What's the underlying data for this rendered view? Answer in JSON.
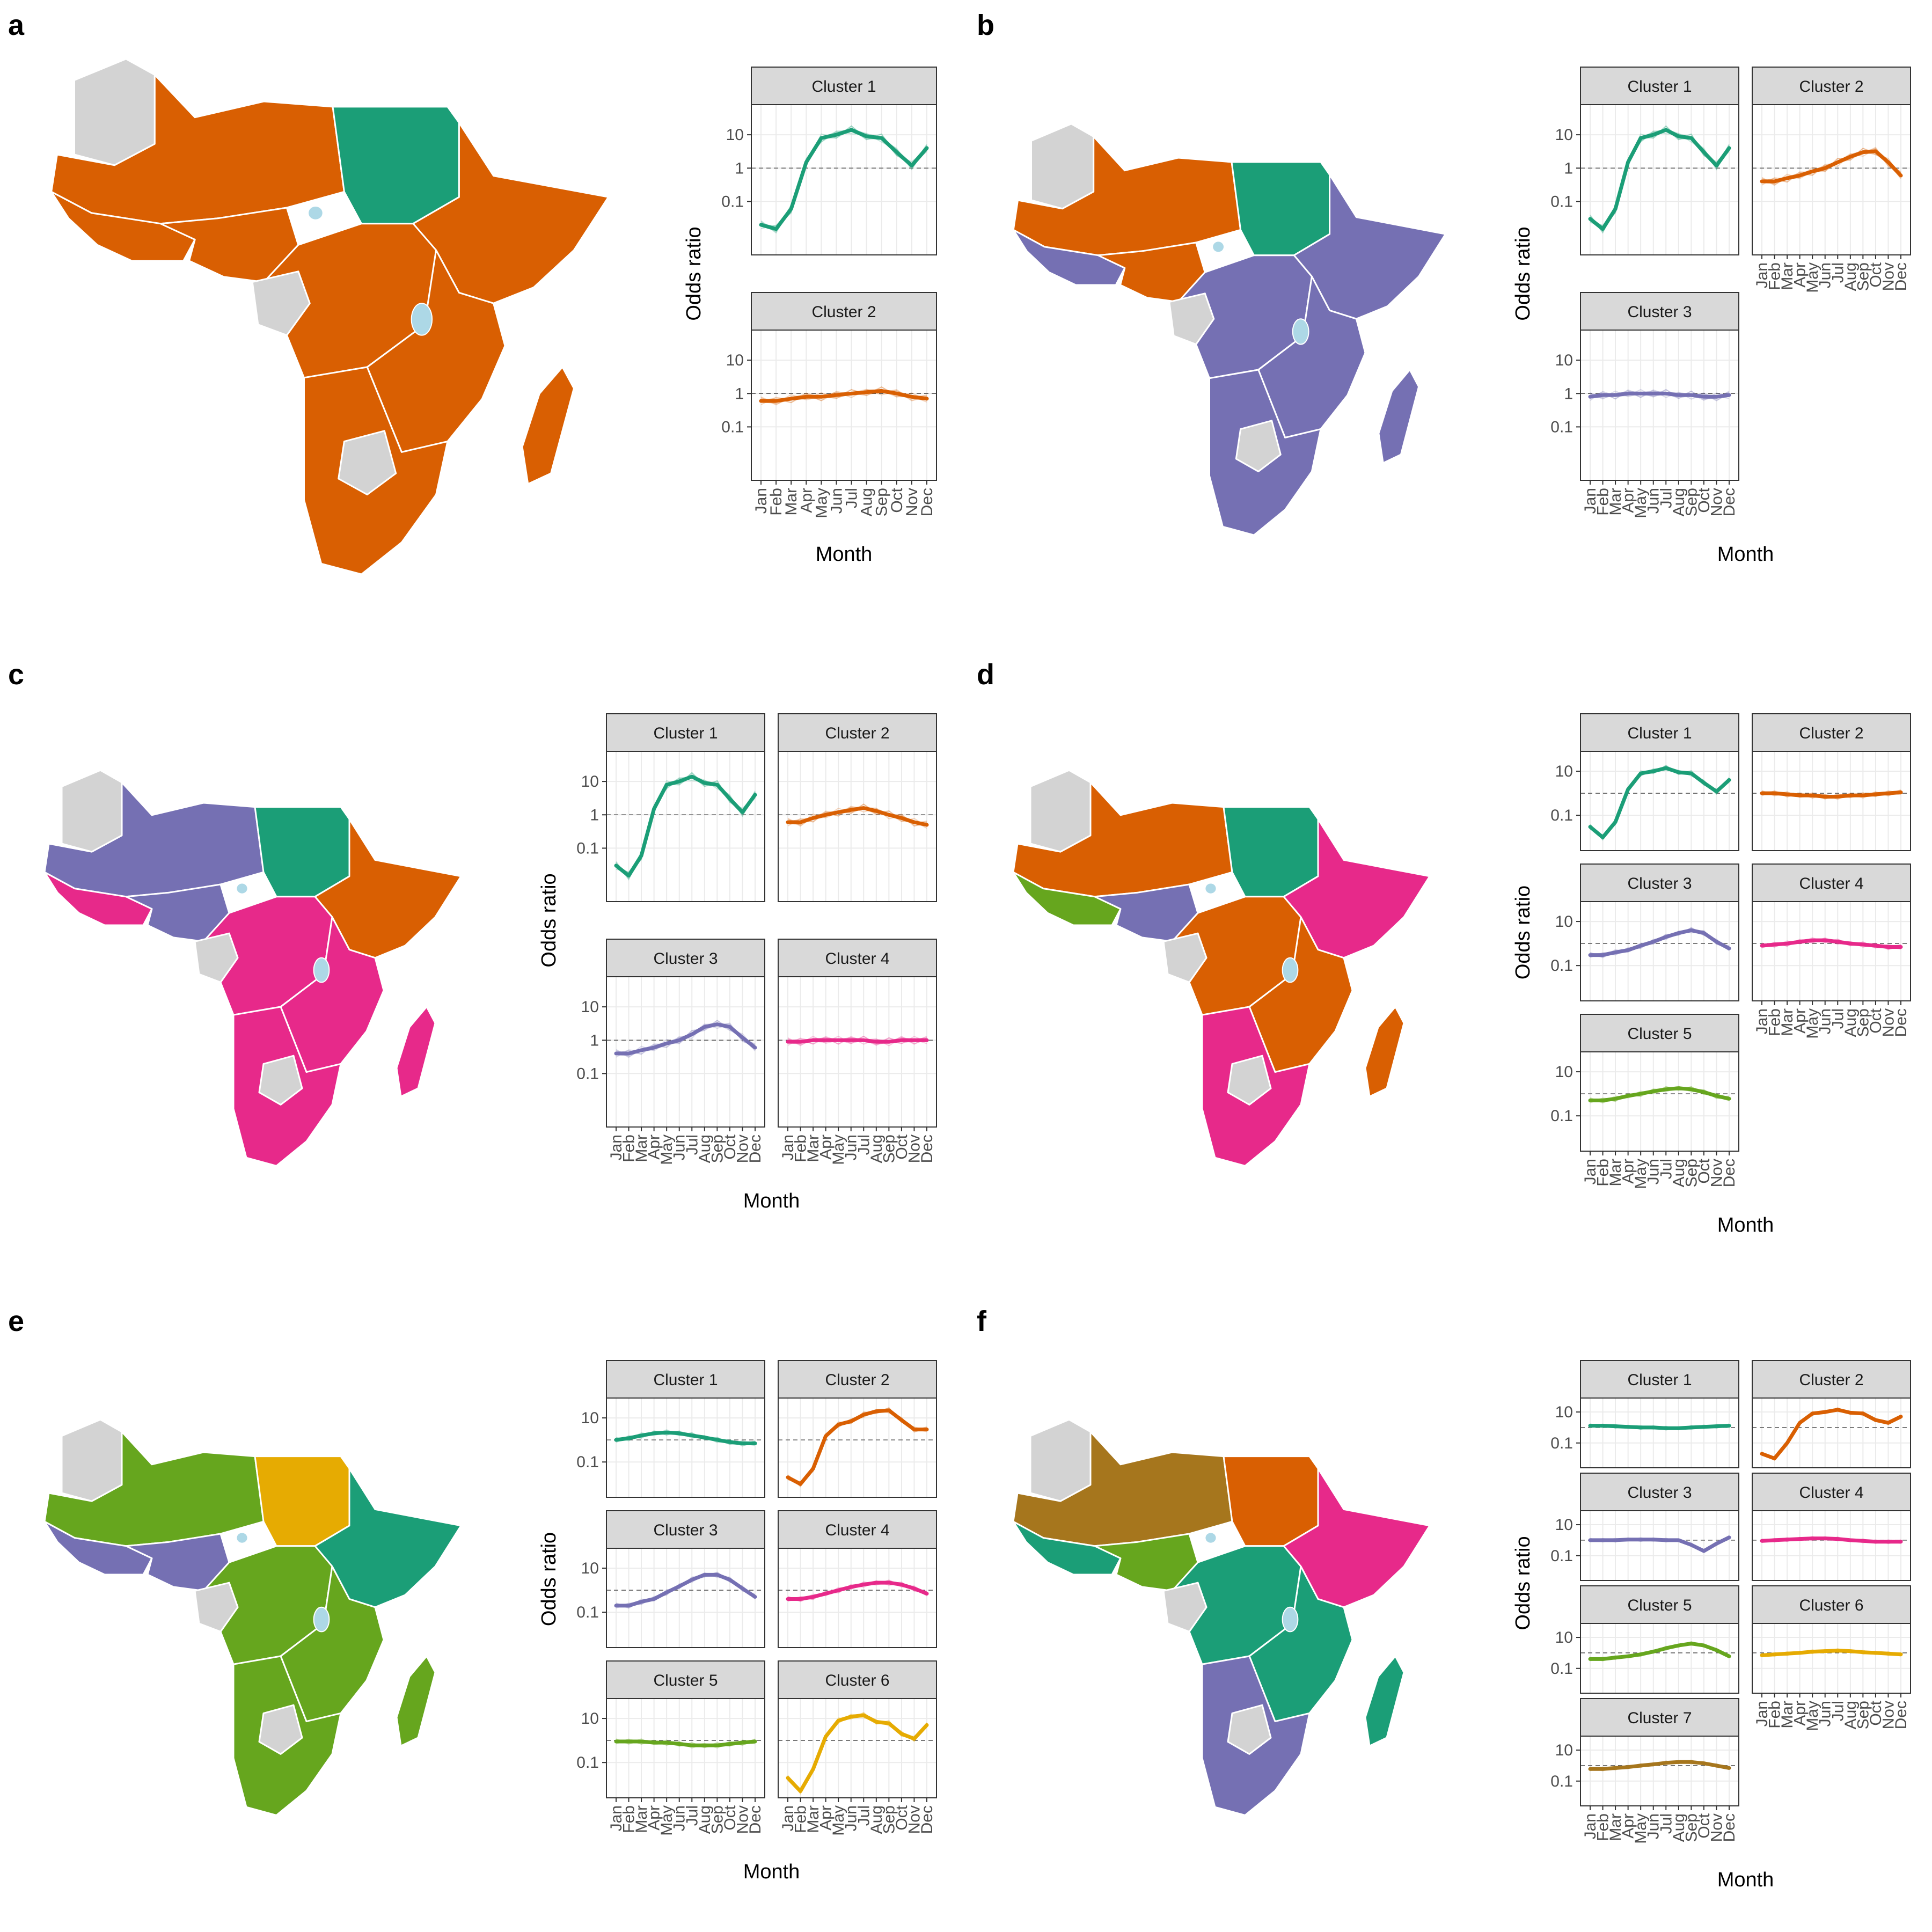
{
  "figure": {
    "panels": [
      {
        "label": "a",
        "clusters": [
          1,
          2
        ]
      },
      {
        "label": "b",
        "clusters": [
          1,
          2,
          3
        ]
      },
      {
        "label": "c",
        "clusters": [
          1,
          3,
          2,
          4
        ]
      },
      {
        "label": "d",
        "clusters": [
          1,
          2,
          3,
          4,
          5
        ]
      },
      {
        "label": "e",
        "clusters": [
          1,
          2,
          3,
          4,
          5,
          6
        ]
      },
      {
        "label": "f",
        "clusters": [
          1,
          2,
          3,
          4,
          5,
          6,
          7
        ]
      }
    ]
  },
  "chart_data": [
    {
      "panel": "a",
      "type": "line",
      "xlabel": "Month",
      "ylabel": "Odds ratio",
      "x": [
        "Jan",
        "Feb",
        "Mar",
        "Apr",
        "May",
        "Jun",
        "Jul",
        "Aug",
        "Sep",
        "Oct",
        "Nov",
        "Dec"
      ],
      "yscale": "log10",
      "yticks": [
        "10",
        "1",
        "0.1"
      ],
      "reference_line": 1,
      "grid": true,
      "series": [
        {
          "name": "Cluster 1",
          "color": "#1b9e77",
          "values": [
            0.02,
            0.015,
            0.06,
            1.5,
            8,
            10,
            14,
            9,
            8,
            3,
            1.2,
            4
          ]
        },
        {
          "name": "Cluster 2",
          "color": "#d95f02",
          "values": [
            0.6,
            0.6,
            0.7,
            0.8,
            0.8,
            0.9,
            1.0,
            1.1,
            1.2,
            1.0,
            0.8,
            0.7
          ]
        }
      ]
    },
    {
      "panel": "b",
      "type": "line",
      "xlabel": "Month",
      "ylabel": "Odds ratio",
      "x": [
        "Jan",
        "Feb",
        "Mar",
        "Apr",
        "May",
        "Jun",
        "Jul",
        "Aug",
        "Sep",
        "Oct",
        "Nov",
        "Dec"
      ],
      "yscale": "log10",
      "yticks": [
        "10",
        "1",
        "0.1"
      ],
      "reference_line": 1,
      "grid": true,
      "series": [
        {
          "name": "Cluster 1",
          "color": "#1b9e77",
          "values": [
            0.03,
            0.015,
            0.06,
            1.5,
            8,
            10,
            14,
            9,
            8,
            3,
            1.2,
            4
          ]
        },
        {
          "name": "Cluster 2",
          "color": "#d95f02",
          "values": [
            0.4,
            0.4,
            0.5,
            0.6,
            0.8,
            1.0,
            1.5,
            2.2,
            3.0,
            3.2,
            1.5,
            0.6
          ]
        },
        {
          "name": "Cluster 3",
          "color": "#7570b3",
          "values": [
            0.8,
            0.9,
            0.9,
            1.0,
            1.0,
            1.0,
            1.0,
            0.9,
            0.9,
            0.8,
            0.8,
            0.9
          ]
        }
      ]
    },
    {
      "panel": "c",
      "type": "line",
      "xlabel": "Month",
      "ylabel": "Odds ratio",
      "x": [
        "Jan",
        "Feb",
        "Mar",
        "Apr",
        "May",
        "Jun",
        "Jul",
        "Aug",
        "Sep",
        "Oct",
        "Nov",
        "Dec"
      ],
      "yscale": "log10",
      "yticks": [
        "10",
        "1",
        "0.1"
      ],
      "reference_line": 1,
      "grid": true,
      "series": [
        {
          "name": "Cluster 1",
          "color": "#1b9e77",
          "values": [
            0.03,
            0.015,
            0.06,
            1.5,
            8,
            10,
            14,
            9,
            8,
            3,
            1.2,
            4
          ]
        },
        {
          "name": "Cluster 2",
          "color": "#d95f02",
          "values": [
            0.6,
            0.6,
            0.8,
            1.0,
            1.2,
            1.4,
            1.6,
            1.3,
            1.0,
            0.8,
            0.6,
            0.5
          ]
        },
        {
          "name": "Cluster 3",
          "color": "#7570b3",
          "values": [
            0.4,
            0.4,
            0.5,
            0.6,
            0.8,
            1.0,
            1.5,
            2.5,
            3.0,
            2.5,
            1.2,
            0.6
          ]
        },
        {
          "name": "Cluster 4",
          "color": "#e7298a",
          "values": [
            0.9,
            0.9,
            1.0,
            1.0,
            1.0,
            1.0,
            1.0,
            0.9,
            0.9,
            1.0,
            1.0,
            1.0
          ]
        }
      ]
    },
    {
      "panel": "d",
      "type": "line",
      "xlabel": "Month",
      "ylabel": "Odds ratio",
      "x": [
        "Jan",
        "Feb",
        "Mar",
        "Apr",
        "May",
        "Jun",
        "Jul",
        "Aug",
        "Sep",
        "Oct",
        "Nov",
        "Dec"
      ],
      "yscale": "log10",
      "yticks": [
        "10",
        "0.1"
      ],
      "reference_line": 1,
      "grid": true,
      "series": [
        {
          "name": "Cluster 1",
          "color": "#1b9e77",
          "values": [
            0.03,
            0.01,
            0.05,
            1.5,
            8,
            10,
            14,
            9,
            8,
            3,
            1.2,
            4
          ]
        },
        {
          "name": "Cluster 2",
          "color": "#d95f02",
          "values": [
            1.0,
            1.0,
            0.9,
            0.8,
            0.8,
            0.7,
            0.7,
            0.8,
            0.8,
            0.9,
            1.0,
            1.1
          ]
        },
        {
          "name": "Cluster 3",
          "color": "#7570b3",
          "values": [
            0.3,
            0.3,
            0.4,
            0.5,
            0.8,
            1.2,
            2.0,
            3.0,
            4.0,
            3.0,
            1.2,
            0.6
          ]
        },
        {
          "name": "Cluster 4",
          "color": "#e7298a",
          "values": [
            0.8,
            0.9,
            1.0,
            1.2,
            1.4,
            1.4,
            1.2,
            1.0,
            0.9,
            0.8,
            0.7,
            0.7
          ]
        },
        {
          "name": "Cluster 5",
          "color": "#66a61e",
          "values": [
            0.5,
            0.5,
            0.6,
            0.8,
            1.0,
            1.3,
            1.6,
            1.8,
            1.6,
            1.2,
            0.8,
            0.6
          ]
        }
      ]
    },
    {
      "panel": "e",
      "type": "line",
      "xlabel": "Month",
      "ylabel": "Odds ratio",
      "x": [
        "Jan",
        "Feb",
        "Mar",
        "Apr",
        "May",
        "Jun",
        "Jul",
        "Aug",
        "Sep",
        "Oct",
        "Nov",
        "Dec"
      ],
      "yscale": "log10",
      "yticks": [
        "10",
        "0.1"
      ],
      "reference_line": 1,
      "grid": true,
      "series": [
        {
          "name": "Cluster 1",
          "color": "#1b9e77",
          "values": [
            1.0,
            1.2,
            1.6,
            2.0,
            2.2,
            2.0,
            1.6,
            1.3,
            1.0,
            0.8,
            0.7,
            0.7
          ]
        },
        {
          "name": "Cluster 2",
          "color": "#d95f02",
          "values": [
            0.02,
            0.01,
            0.05,
            1.5,
            5,
            7,
            14,
            20,
            22,
            8,
            3,
            3
          ]
        },
        {
          "name": "Cluster 3",
          "color": "#7570b3",
          "values": [
            0.2,
            0.2,
            0.3,
            0.4,
            0.8,
            1.5,
            3,
            5,
            5,
            3,
            1.2,
            0.5
          ]
        },
        {
          "name": "Cluster 4",
          "color": "#e7298a",
          "values": [
            0.4,
            0.4,
            0.5,
            0.7,
            1.0,
            1.4,
            1.8,
            2.2,
            2.2,
            1.8,
            1.2,
            0.7
          ]
        },
        {
          "name": "Cluster 5",
          "color": "#66a61e",
          "values": [
            0.9,
            0.9,
            0.9,
            0.8,
            0.8,
            0.7,
            0.6,
            0.6,
            0.6,
            0.7,
            0.8,
            0.9
          ]
        },
        {
          "name": "Cluster 6",
          "color": "#e6ab02",
          "values": [
            0.02,
            0.005,
            0.05,
            1.5,
            8,
            12,
            14,
            7,
            6,
            2,
            1.2,
            5
          ]
        }
      ]
    },
    {
      "panel": "f",
      "type": "line",
      "xlabel": "Month",
      "ylabel": "Odds ratio",
      "x": [
        "Jan",
        "Feb",
        "Mar",
        "Apr",
        "May",
        "Jun",
        "Jul",
        "Aug",
        "Sep",
        "Oct",
        "Nov",
        "Dec"
      ],
      "yscale": "log10",
      "yticks": [
        "10",
        "0.1"
      ],
      "reference_line": 1,
      "grid": true,
      "series": [
        {
          "name": "Cluster 1",
          "color": "#1b9e77",
          "values": [
            1.3,
            1.3,
            1.2,
            1.1,
            1.0,
            1.0,
            0.9,
            0.9,
            1.0,
            1.1,
            1.2,
            1.3
          ]
        },
        {
          "name": "Cluster 2",
          "color": "#d95f02",
          "values": [
            0.02,
            0.01,
            0.1,
            2,
            8,
            10,
            14,
            9,
            8,
            3,
            2,
            5
          ]
        },
        {
          "name": "Cluster 3",
          "color": "#7570b3",
          "values": [
            1.0,
            1.0,
            1.0,
            1.1,
            1.1,
            1.1,
            1.0,
            1.0,
            0.5,
            0.2,
            0.6,
            1.5
          ]
        },
        {
          "name": "Cluster 4",
          "color": "#e7298a",
          "values": [
            0.9,
            1.0,
            1.1,
            1.2,
            1.3,
            1.3,
            1.2,
            1.0,
            0.9,
            0.8,
            0.8,
            0.8
          ]
        },
        {
          "name": "Cluster 5",
          "color": "#66a61e",
          "values": [
            0.4,
            0.4,
            0.5,
            0.6,
            0.8,
            1.2,
            2,
            3,
            4,
            3,
            1.5,
            0.6
          ]
        },
        {
          "name": "Cluster 6",
          "color": "#e6ab02",
          "values": [
            0.7,
            0.8,
            0.9,
            1.0,
            1.2,
            1.3,
            1.4,
            1.3,
            1.1,
            1.0,
            0.9,
            0.8
          ]
        },
        {
          "name": "Cluster 7",
          "color": "#a6761d",
          "values": [
            0.6,
            0.6,
            0.7,
            0.8,
            1.0,
            1.2,
            1.5,
            1.7,
            1.7,
            1.4,
            1.0,
            0.7
          ]
        }
      ]
    }
  ],
  "maps": [
    {
      "panel": "a",
      "no_data_color": "#d3d3d3",
      "water_color": "#add8e6",
      "regions": {
        "west-sahel": "#d95f02",
        "west-coast": "#d95f02",
        "nigeria": "#d95f02",
        "sudan": "#1b9e77",
        "horn": "#d95f02",
        "central": "#d95f02",
        "east": "#d95f02",
        "south": "#d95f02",
        "madagascar": "#d95f02",
        "gabon": "#d3d3d3",
        "botswana": "#d3d3d3",
        "libya": "#d3d3d3"
      }
    },
    {
      "panel": "b",
      "no_data_color": "#d3d3d3",
      "water_color": "#add8e6",
      "regions": {
        "west-sahel": "#d95f02",
        "west-coast": "#7570b3",
        "nigeria": "#d95f02",
        "sudan": "#1b9e77",
        "horn": "#7570b3",
        "central": "#7570b3",
        "east": "#7570b3",
        "south": "#7570b3",
        "madagascar": "#7570b3",
        "gabon": "#d3d3d3",
        "botswana": "#d3d3d3",
        "libya": "#d3d3d3"
      }
    },
    {
      "panel": "c",
      "no_data_color": "#d3d3d3",
      "water_color": "#add8e6",
      "regions": {
        "west-sahel": "#7570b3",
        "west-coast": "#e7298a",
        "nigeria": "#7570b3",
        "sudan": "#1b9e77",
        "horn": "#d95f02",
        "central": "#e7298a",
        "east": "#e7298a",
        "south": "#e7298a",
        "madagascar": "#e7298a",
        "gabon": "#d3d3d3",
        "botswana": "#d3d3d3",
        "libya": "#d3d3d3"
      }
    },
    {
      "panel": "d",
      "no_data_color": "#d3d3d3",
      "water_color": "#add8e6",
      "regions": {
        "west-sahel": "#d95f02",
        "west-coast": "#66a61e",
        "nigeria": "#7570b3",
        "sudan": "#1b9e77",
        "horn": "#e7298a",
        "central": "#d95f02",
        "east": "#d95f02",
        "south": "#e7298a",
        "madagascar": "#d95f02",
        "gabon": "#d3d3d3",
        "botswana": "#d3d3d3",
        "libya": "#d3d3d3"
      }
    },
    {
      "panel": "e",
      "no_data_color": "#d3d3d3",
      "water_color": "#add8e6",
      "regions": {
        "west-sahel": "#66a61e",
        "west-coast": "#7570b3",
        "nigeria": "#7570b3",
        "sudan": "#e6ab02",
        "horn": "#1b9e77",
        "central": "#66a61e",
        "east": "#66a61e",
        "south": "#66a61e",
        "madagascar": "#66a61e",
        "gabon": "#d3d3d3",
        "botswana": "#d3d3d3",
        "libya": "#d3d3d3"
      }
    },
    {
      "panel": "f",
      "no_data_color": "#d3d3d3",
      "water_color": "#add8e6",
      "regions": {
        "west-sahel": "#a6761d",
        "west-coast": "#1b9e77",
        "nigeria": "#66a61e",
        "sudan": "#d95f02",
        "horn": "#e7298a",
        "central": "#1b9e77",
        "east": "#1b9e77",
        "south": "#7570b3",
        "madagascar": "#1b9e77",
        "gabon": "#d3d3d3",
        "botswana": "#d3d3d3",
        "libya": "#d3d3d3"
      }
    }
  ]
}
